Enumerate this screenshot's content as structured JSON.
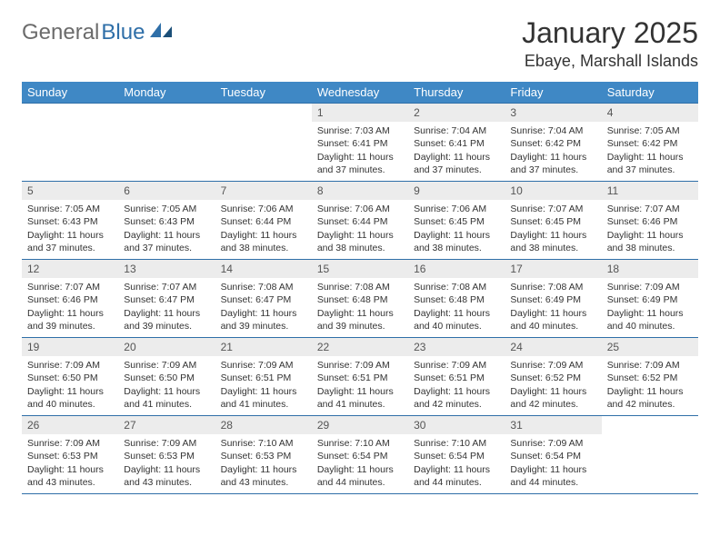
{
  "logo": {
    "text1": "General",
    "text2": "Blue"
  },
  "title": "January 2025",
  "location": "Ebaye, Marshall Islands",
  "colors": {
    "header_bg": "#3f88c5",
    "header_text": "#ffffff",
    "border": "#2f6fa8",
    "daynum_bg": "#ececec",
    "logo_gray": "#6b6b6b",
    "logo_blue": "#2f6fa8",
    "background": "#ffffff"
  },
  "weekdays": [
    "Sunday",
    "Monday",
    "Tuesday",
    "Wednesday",
    "Thursday",
    "Friday",
    "Saturday"
  ],
  "weeks": [
    [
      {
        "day": "",
        "lines": []
      },
      {
        "day": "",
        "lines": []
      },
      {
        "day": "",
        "lines": []
      },
      {
        "day": "1",
        "lines": [
          "Sunrise: 7:03 AM",
          "Sunset: 6:41 PM",
          "Daylight: 11 hours and 37 minutes."
        ]
      },
      {
        "day": "2",
        "lines": [
          "Sunrise: 7:04 AM",
          "Sunset: 6:41 PM",
          "Daylight: 11 hours and 37 minutes."
        ]
      },
      {
        "day": "3",
        "lines": [
          "Sunrise: 7:04 AM",
          "Sunset: 6:42 PM",
          "Daylight: 11 hours and 37 minutes."
        ]
      },
      {
        "day": "4",
        "lines": [
          "Sunrise: 7:05 AM",
          "Sunset: 6:42 PM",
          "Daylight: 11 hours and 37 minutes."
        ]
      }
    ],
    [
      {
        "day": "5",
        "lines": [
          "Sunrise: 7:05 AM",
          "Sunset: 6:43 PM",
          "Daylight: 11 hours and 37 minutes."
        ]
      },
      {
        "day": "6",
        "lines": [
          "Sunrise: 7:05 AM",
          "Sunset: 6:43 PM",
          "Daylight: 11 hours and 37 minutes."
        ]
      },
      {
        "day": "7",
        "lines": [
          "Sunrise: 7:06 AM",
          "Sunset: 6:44 PM",
          "Daylight: 11 hours and 38 minutes."
        ]
      },
      {
        "day": "8",
        "lines": [
          "Sunrise: 7:06 AM",
          "Sunset: 6:44 PM",
          "Daylight: 11 hours and 38 minutes."
        ]
      },
      {
        "day": "9",
        "lines": [
          "Sunrise: 7:06 AM",
          "Sunset: 6:45 PM",
          "Daylight: 11 hours and 38 minutes."
        ]
      },
      {
        "day": "10",
        "lines": [
          "Sunrise: 7:07 AM",
          "Sunset: 6:45 PM",
          "Daylight: 11 hours and 38 minutes."
        ]
      },
      {
        "day": "11",
        "lines": [
          "Sunrise: 7:07 AM",
          "Sunset: 6:46 PM",
          "Daylight: 11 hours and 38 minutes."
        ]
      }
    ],
    [
      {
        "day": "12",
        "lines": [
          "Sunrise: 7:07 AM",
          "Sunset: 6:46 PM",
          "Daylight: 11 hours and 39 minutes."
        ]
      },
      {
        "day": "13",
        "lines": [
          "Sunrise: 7:07 AM",
          "Sunset: 6:47 PM",
          "Daylight: 11 hours and 39 minutes."
        ]
      },
      {
        "day": "14",
        "lines": [
          "Sunrise: 7:08 AM",
          "Sunset: 6:47 PM",
          "Daylight: 11 hours and 39 minutes."
        ]
      },
      {
        "day": "15",
        "lines": [
          "Sunrise: 7:08 AM",
          "Sunset: 6:48 PM",
          "Daylight: 11 hours and 39 minutes."
        ]
      },
      {
        "day": "16",
        "lines": [
          "Sunrise: 7:08 AM",
          "Sunset: 6:48 PM",
          "Daylight: 11 hours and 40 minutes."
        ]
      },
      {
        "day": "17",
        "lines": [
          "Sunrise: 7:08 AM",
          "Sunset: 6:49 PM",
          "Daylight: 11 hours and 40 minutes."
        ]
      },
      {
        "day": "18",
        "lines": [
          "Sunrise: 7:09 AM",
          "Sunset: 6:49 PM",
          "Daylight: 11 hours and 40 minutes."
        ]
      }
    ],
    [
      {
        "day": "19",
        "lines": [
          "Sunrise: 7:09 AM",
          "Sunset: 6:50 PM",
          "Daylight: 11 hours and 40 minutes."
        ]
      },
      {
        "day": "20",
        "lines": [
          "Sunrise: 7:09 AM",
          "Sunset: 6:50 PM",
          "Daylight: 11 hours and 41 minutes."
        ]
      },
      {
        "day": "21",
        "lines": [
          "Sunrise: 7:09 AM",
          "Sunset: 6:51 PM",
          "Daylight: 11 hours and 41 minutes."
        ]
      },
      {
        "day": "22",
        "lines": [
          "Sunrise: 7:09 AM",
          "Sunset: 6:51 PM",
          "Daylight: 11 hours and 41 minutes."
        ]
      },
      {
        "day": "23",
        "lines": [
          "Sunrise: 7:09 AM",
          "Sunset: 6:51 PM",
          "Daylight: 11 hours and 42 minutes."
        ]
      },
      {
        "day": "24",
        "lines": [
          "Sunrise: 7:09 AM",
          "Sunset: 6:52 PM",
          "Daylight: 11 hours and 42 minutes."
        ]
      },
      {
        "day": "25",
        "lines": [
          "Sunrise: 7:09 AM",
          "Sunset: 6:52 PM",
          "Daylight: 11 hours and 42 minutes."
        ]
      }
    ],
    [
      {
        "day": "26",
        "lines": [
          "Sunrise: 7:09 AM",
          "Sunset: 6:53 PM",
          "Daylight: 11 hours and 43 minutes."
        ]
      },
      {
        "day": "27",
        "lines": [
          "Sunrise: 7:09 AM",
          "Sunset: 6:53 PM",
          "Daylight: 11 hours and 43 minutes."
        ]
      },
      {
        "day": "28",
        "lines": [
          "Sunrise: 7:10 AM",
          "Sunset: 6:53 PM",
          "Daylight: 11 hours and 43 minutes."
        ]
      },
      {
        "day": "29",
        "lines": [
          "Sunrise: 7:10 AM",
          "Sunset: 6:54 PM",
          "Daylight: 11 hours and 44 minutes."
        ]
      },
      {
        "day": "30",
        "lines": [
          "Sunrise: 7:10 AM",
          "Sunset: 6:54 PM",
          "Daylight: 11 hours and 44 minutes."
        ]
      },
      {
        "day": "31",
        "lines": [
          "Sunrise: 7:09 AM",
          "Sunset: 6:54 PM",
          "Daylight: 11 hours and 44 minutes."
        ]
      },
      {
        "day": "",
        "lines": []
      }
    ]
  ]
}
